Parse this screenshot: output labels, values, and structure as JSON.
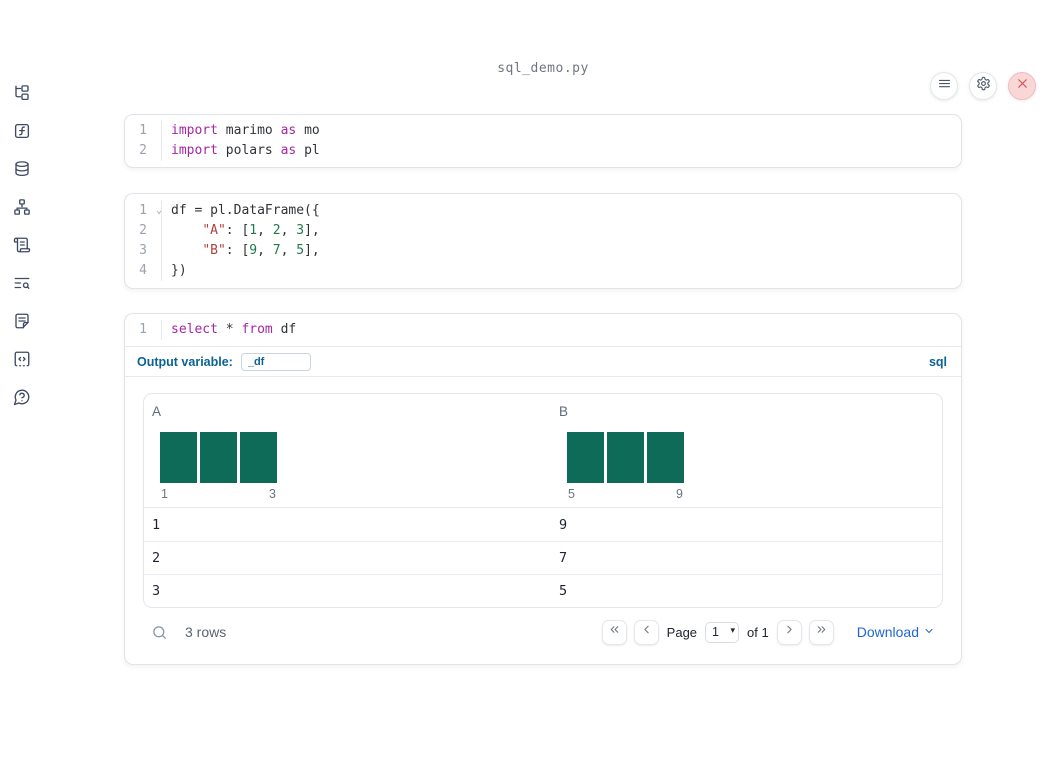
{
  "window": {
    "title": "sql_demo.py"
  },
  "topbar": {
    "buttons": [
      {
        "name": "menu"
      },
      {
        "name": "settings"
      },
      {
        "name": "close"
      }
    ]
  },
  "sidebar": {
    "items": [
      "file-explorer",
      "functions",
      "datasources",
      "dependency-graph",
      "scratchpad",
      "logs",
      "documentation",
      "snippets",
      "help"
    ]
  },
  "cells": [
    {
      "name": "imports-cell",
      "lines": [
        {
          "no": "1",
          "tokens": [
            {
              "c": "kw",
              "v": "import"
            },
            {
              "c": "tx",
              "v": " marimo "
            },
            {
              "c": "kw",
              "v": "as"
            },
            {
              "c": "tx",
              "v": " mo"
            }
          ]
        },
        {
          "no": "2",
          "tokens": [
            {
              "c": "kw",
              "v": "import"
            },
            {
              "c": "tx",
              "v": " polars "
            },
            {
              "c": "kw",
              "v": "as"
            },
            {
              "c": "tx",
              "v": " pl"
            }
          ]
        }
      ]
    },
    {
      "name": "dataframe-cell",
      "lines": [
        {
          "no": "1",
          "fold": true,
          "tokens": [
            {
              "c": "tx",
              "v": "df = pl.DataFrame({"
            }
          ]
        },
        {
          "no": "2",
          "tokens": [
            {
              "c": "tx",
              "v": "    "
            },
            {
              "c": "st",
              "v": "\"A\""
            },
            {
              "c": "tx",
              "v": ": ["
            },
            {
              "c": "nu",
              "v": "1"
            },
            {
              "c": "tx",
              "v": ", "
            },
            {
              "c": "nu",
              "v": "2"
            },
            {
              "c": "tx",
              "v": ", "
            },
            {
              "c": "nu",
              "v": "3"
            },
            {
              "c": "tx",
              "v": "],"
            }
          ]
        },
        {
          "no": "3",
          "tokens": [
            {
              "c": "tx",
              "v": "    "
            },
            {
              "c": "st",
              "v": "\"B\""
            },
            {
              "c": "tx",
              "v": ": ["
            },
            {
              "c": "nu",
              "v": "9"
            },
            {
              "c": "tx",
              "v": ", "
            },
            {
              "c": "nu",
              "v": "7"
            },
            {
              "c": "tx",
              "v": ", "
            },
            {
              "c": "nu",
              "v": "5"
            },
            {
              "c": "tx",
              "v": "],"
            }
          ]
        },
        {
          "no": "4",
          "tokens": [
            {
              "c": "tx",
              "v": "})"
            }
          ]
        }
      ]
    },
    {
      "name": "sql-cell",
      "lines": [
        {
          "no": "1",
          "tokens": [
            {
              "c": "kw",
              "v": "select"
            },
            {
              "c": "tx",
              "v": " * "
            },
            {
              "c": "kw",
              "v": "from"
            },
            {
              "c": "tx",
              "v": " df"
            }
          ]
        }
      ]
    }
  ],
  "sql": {
    "output_variable_label": "Output variable:",
    "output_variable_value": "_df",
    "language_label": "sql"
  },
  "table": {
    "columns": [
      {
        "name": "A",
        "hist": {
          "bars": 3,
          "min_label": "1",
          "max_label": "3"
        }
      },
      {
        "name": "B",
        "hist": {
          "bars": 3,
          "min_label": "5",
          "max_label": "9"
        }
      }
    ],
    "rows": [
      [
        "1",
        "9"
      ],
      [
        "2",
        "7"
      ],
      [
        "3",
        "5"
      ]
    ],
    "footer": {
      "row_count": "3 rows",
      "page_label": "Page",
      "page_value": "1",
      "of_label": "of 1",
      "download_label": "Download"
    }
  },
  "chart_data": {
    "type": "table",
    "title": "_df",
    "columns": [
      "A",
      "B"
    ],
    "rows": [
      [
        1,
        9
      ],
      [
        2,
        7
      ],
      [
        3,
        5
      ]
    ],
    "column_histograms": [
      {
        "column": "A",
        "bars": [
          1,
          1,
          1
        ],
        "min": 1,
        "max": 3
      },
      {
        "column": "B",
        "bars": [
          1,
          1,
          1
        ],
        "min": 5,
        "max": 9
      }
    ]
  },
  "colors": {
    "accent_blue": "#0c6295",
    "link_blue": "#2166d1",
    "bar_green": "#0e6b58",
    "keyword": "#a626a4",
    "string": "#b0413a",
    "number": "#1e7a4e",
    "close_red": "#d84d4d"
  }
}
